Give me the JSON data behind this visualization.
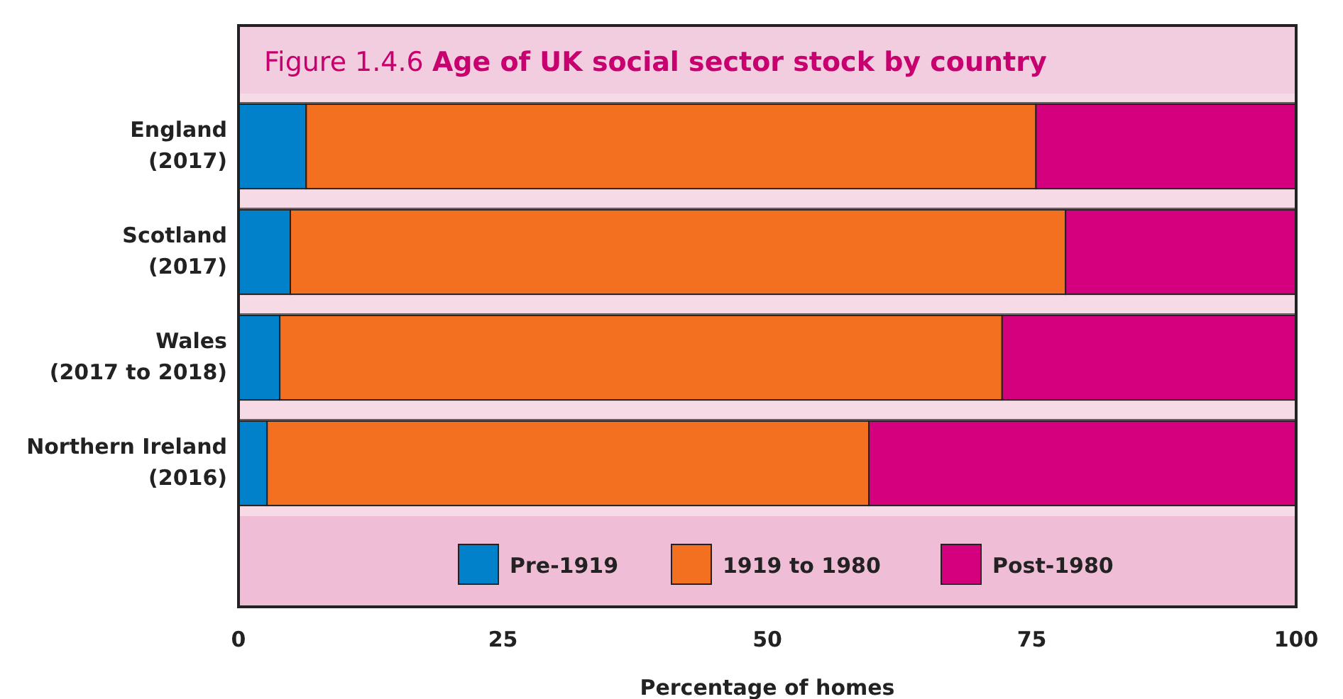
{
  "chart_data": {
    "type": "bar",
    "orientation": "horizontal",
    "stacked": true,
    "title": "Figure 1.4.6 Age of UK social sector stock by country",
    "xlabel": "Percentage of homes",
    "categories": [
      "England\n(2017)",
      "Scotland\n(2017)",
      "Wales\n(2017 to 2018)",
      "Northern Ireland\n(2016)"
    ],
    "series": [
      {
        "name": "Pre-1919",
        "color": "#0081c9",
        "values": [
          6.4,
          4.9,
          3.9,
          2.7
        ]
      },
      {
        "name": "1919 to 1980",
        "color": "#f37021",
        "values": [
          69.0,
          73.3,
          68.3,
          56.9
        ]
      },
      {
        "name": "Post-1980",
        "color": "#d5007d",
        "values": [
          24.6,
          21.8,
          27.8,
          40.4
        ]
      }
    ],
    "xlim": [
      0,
      100
    ],
    "xticks": [
      0,
      25,
      50,
      75,
      100
    ],
    "legend": "bottom",
    "grid": false
  }
}
